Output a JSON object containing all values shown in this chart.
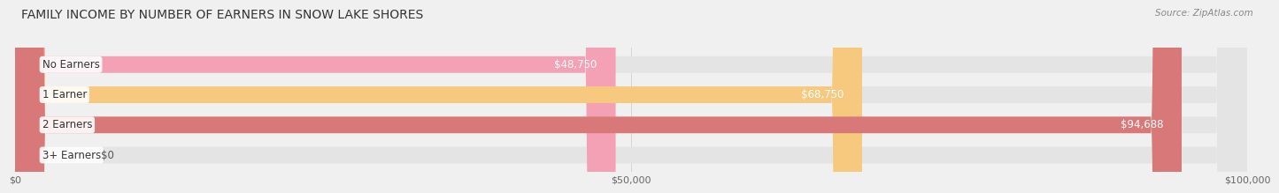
{
  "title": "FAMILY INCOME BY NUMBER OF EARNERS IN SNOW LAKE SHORES",
  "source": "Source: ZipAtlas.com",
  "categories": [
    "No Earners",
    "1 Earner",
    "2 Earners",
    "3+ Earners"
  ],
  "values": [
    48750,
    68750,
    94688,
    0
  ],
  "bar_colors": [
    "#f4a0b5",
    "#f7c97e",
    "#d97878",
    "#b8cfe8"
  ],
  "bar_track_color": "#e4e4e4",
  "bg_color": "#f0f0f0",
  "xlim_max": 100000,
  "xticks": [
    0,
    50000,
    100000
  ],
  "xtick_labels": [
    "$0",
    "$50,000",
    "$100,000"
  ],
  "value_labels": [
    "$48,750",
    "$68,750",
    "$94,688",
    "$0"
  ],
  "title_fontsize": 10,
  "source_fontsize": 7.5,
  "label_fontsize": 8.5,
  "value_fontsize": 8.5
}
